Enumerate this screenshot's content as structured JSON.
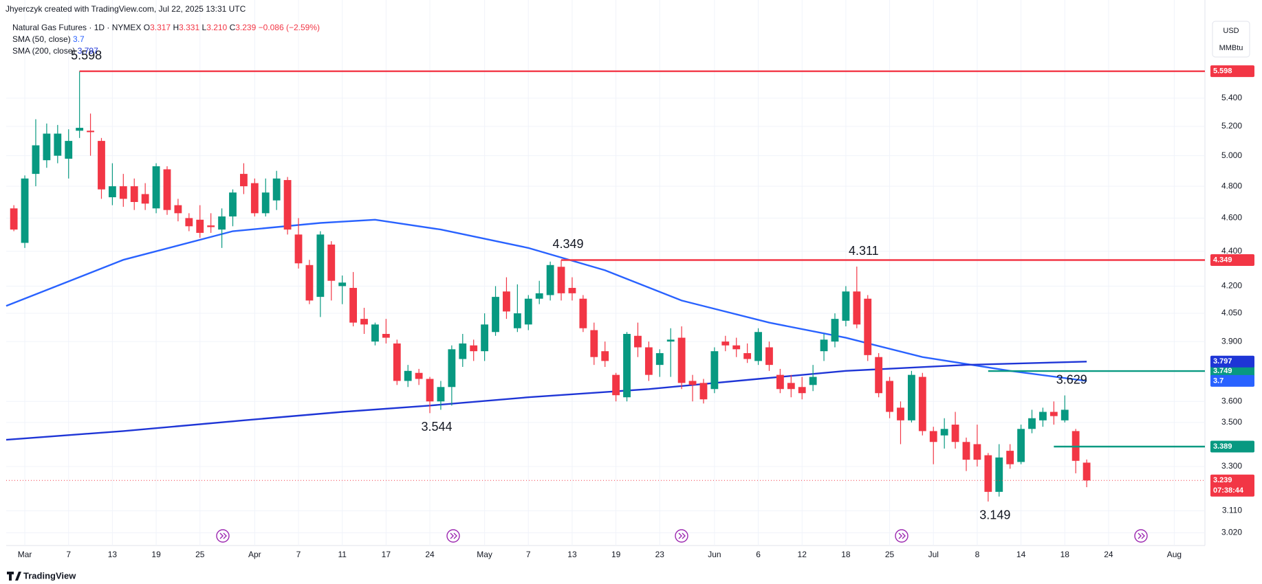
{
  "header": {
    "credit": "Jhyerczyk created with TradingView.com, Jul 22, 2025 13:31 UTC",
    "symbol": "Natural Gas Futures · 1D · NYMEX",
    "ohlc": [
      {
        "label": "O",
        "text": "3.317"
      },
      {
        "label": "H",
        "text": "3.331"
      },
      {
        "label": "L",
        "text": "3.210"
      },
      {
        "label": "C",
        "text": "3.239"
      }
    ],
    "change": "−0.086 (−2.59%)",
    "currency": "USD",
    "unit": "MMBtu"
  },
  "footer": {
    "brand": "TradingView"
  },
  "chart_data": {
    "type": "candlestick",
    "log_scale": true,
    "grid": true,
    "up_color": "#089981",
    "down_color": "#f23645",
    "xlim": [
      -0.7,
      108.8
    ],
    "ylim": [
      2.98,
      5.99
    ],
    "yticks": [
      {
        "value": 5.4,
        "label": "5.400"
      },
      {
        "value": 5.2,
        "label": "5.200"
      },
      {
        "value": 5.0,
        "label": "5.000"
      },
      {
        "value": 4.8,
        "label": "4.800"
      },
      {
        "value": 4.6,
        "label": "4.600"
      },
      {
        "value": 4.4,
        "label": "4.400"
      },
      {
        "value": 4.2,
        "label": "4.200"
      },
      {
        "value": 4.05,
        "label": "4.050"
      },
      {
        "value": 3.9,
        "label": "3.900"
      },
      {
        "value": 3.6,
        "label": "3.600"
      },
      {
        "value": 3.5,
        "label": "3.500"
      },
      {
        "value": 3.3,
        "label": "3.300"
      },
      {
        "value": 3.11,
        "label": "3.110"
      },
      {
        "value": 3.02,
        "label": "3.020"
      }
    ],
    "xticks": [
      {
        "value": 1,
        "label": "Mar"
      },
      {
        "value": 5,
        "label": "7"
      },
      {
        "value": 9,
        "label": "13"
      },
      {
        "value": 13,
        "label": "19"
      },
      {
        "value": 17,
        "label": "25"
      },
      {
        "value": 22,
        "label": "Apr"
      },
      {
        "value": 26,
        "label": "7"
      },
      {
        "value": 30,
        "label": "11"
      },
      {
        "value": 34,
        "label": "17"
      },
      {
        "value": 38,
        "label": "24"
      },
      {
        "value": 43,
        "label": "May"
      },
      {
        "value": 47,
        "label": "7"
      },
      {
        "value": 51,
        "label": "13"
      },
      {
        "value": 55,
        "label": "19"
      },
      {
        "value": 59,
        "label": "23"
      },
      {
        "value": 64,
        "label": "Jun"
      },
      {
        "value": 68,
        "label": "6"
      },
      {
        "value": 72,
        "label": "12"
      },
      {
        "value": 76,
        "label": "18"
      },
      {
        "value": 80,
        "label": "25"
      },
      {
        "value": 84,
        "label": "Jul"
      },
      {
        "value": 88,
        "label": "8"
      },
      {
        "value": 92,
        "label": "14"
      },
      {
        "value": 96,
        "label": "18"
      },
      {
        "value": 100,
        "label": "24"
      },
      {
        "value": 106,
        "label": "Aug"
      }
    ],
    "open": [
      4.66,
      4.45,
      4.88,
      4.97,
      5.0,
      4.98,
      5.17,
      5.17,
      5.1,
      4.73,
      4.8,
      4.8,
      4.75,
      4.66,
      4.91,
      4.68,
      4.6,
      4.59,
      4.555,
      4.53,
      4.61,
      4.88,
      4.82,
      4.63,
      4.71,
      4.84,
      4.5,
      4.32,
      4.14,
      4.44,
      4.2,
      4.19,
      4.02,
      3.9,
      3.94,
      3.89,
      3.7,
      3.74,
      3.71,
      3.6,
      3.67,
      3.81,
      3.88,
      3.85,
      3.95,
      4.17,
      3.97,
      3.99,
      4.13,
      4.15,
      4.31,
      4.19,
      4.13,
      3.96,
      3.85,
      3.73,
      3.62,
      3.93,
      3.87,
      3.78,
      3.9,
      3.92,
      3.7,
      3.69,
      3.66,
      3.9,
      3.88,
      3.84,
      3.8,
      3.87,
      3.73,
      3.69,
      3.67,
      3.68,
      3.85,
      3.9,
      4.01,
      4.17,
      4.13,
      3.82,
      3.7,
      3.57,
      3.51,
      3.72,
      3.46,
      3.44,
      3.49,
      3.41,
      3.4,
      3.35,
      3.19,
      3.37,
      3.32,
      3.47,
      3.51,
      3.55,
      3.51,
      3.46,
      3.317
    ],
    "high": [
      4.68,
      4.87,
      5.25,
      5.22,
      5.21,
      5.18,
      5.598,
      5.29,
      5.12,
      4.95,
      4.88,
      4.85,
      4.82,
      4.95,
      4.93,
      4.72,
      4.63,
      4.68,
      4.63,
      4.66,
      4.78,
      4.95,
      4.85,
      4.85,
      4.9,
      4.86,
      4.6,
      4.35,
      4.52,
      4.46,
      4.26,
      4.28,
      4.08,
      4.0,
      4.02,
      3.91,
      3.78,
      3.76,
      3.72,
      3.7,
      3.88,
      3.94,
      3.91,
      4.05,
      4.2,
      4.25,
      4.21,
      4.15,
      4.23,
      4.34,
      4.349,
      4.25,
      4.15,
      4.0,
      3.9,
      3.74,
      3.95,
      4.0,
      3.9,
      3.86,
      3.97,
      3.98,
      3.73,
      3.71,
      3.87,
      3.93,
      3.92,
      3.89,
      3.97,
      3.9,
      3.76,
      3.73,
      3.72,
      3.78,
      3.94,
      4.05,
      4.2,
      4.311,
      4.15,
      3.84,
      3.72,
      3.6,
      3.75,
      3.74,
      3.48,
      3.52,
      3.55,
      3.43,
      3.49,
      3.36,
      3.4,
      3.4,
      3.49,
      3.56,
      3.57,
      3.6,
      3.629,
      3.47,
      3.331
    ],
    "low": [
      4.52,
      4.42,
      4.8,
      4.92,
      4.95,
      4.85,
      5.12,
      5.0,
      4.72,
      4.68,
      4.67,
      4.65,
      4.65,
      4.63,
      4.62,
      4.58,
      4.52,
      4.48,
      4.51,
      4.42,
      4.55,
      4.75,
      4.61,
      4.61,
      4.65,
      4.5,
      4.3,
      4.1,
      4.03,
      4.12,
      4.1,
      3.98,
      3.94,
      3.88,
      3.89,
      3.68,
      3.67,
      3.68,
      3.544,
      3.56,
      3.58,
      3.77,
      3.8,
      3.8,
      3.93,
      4.02,
      3.95,
      3.96,
      4.1,
      4.12,
      4.12,
      4.12,
      3.95,
      3.78,
      3.77,
      3.6,
      3.6,
      3.82,
      3.7,
      3.72,
      3.72,
      3.66,
      3.6,
      3.59,
      3.64,
      3.85,
      3.82,
      3.79,
      3.78,
      3.75,
      3.64,
      3.62,
      3.61,
      3.65,
      3.8,
      3.87,
      3.98,
      3.97,
      3.8,
      3.62,
      3.52,
      3.4,
      3.5,
      3.44,
      3.31,
      3.38,
      3.38,
      3.28,
      3.3,
      3.149,
      3.17,
      3.29,
      3.31,
      3.45,
      3.48,
      3.49,
      3.5,
      3.27,
      3.21
    ],
    "close": [
      4.53,
      4.85,
      5.07,
      5.15,
      5.15,
      5.1,
      5.19,
      5.16,
      4.78,
      4.8,
      4.72,
      4.7,
      4.69,
      4.93,
      4.65,
      4.63,
      4.55,
      4.51,
      4.545,
      4.61,
      4.76,
      4.8,
      4.63,
      4.76,
      4.85,
      4.53,
      4.33,
      4.12,
      4.5,
      4.23,
      4.22,
      4.0,
      3.99,
      3.99,
      3.92,
      3.7,
      3.75,
      3.71,
      3.6,
      3.67,
      3.86,
      3.89,
      3.85,
      3.99,
      4.14,
      4.06,
      4.05,
      4.13,
      4.16,
      4.32,
      4.16,
      4.16,
      3.97,
      3.82,
      3.8,
      3.63,
      3.94,
      3.87,
      3.73,
      3.84,
      3.91,
      3.69,
      3.68,
      3.61,
      3.85,
      3.88,
      3.86,
      3.81,
      3.95,
      3.78,
      3.66,
      3.66,
      3.64,
      3.72,
      3.91,
      4.02,
      4.17,
      3.99,
      3.83,
      3.64,
      3.55,
      3.51,
      3.73,
      3.46,
      3.41,
      3.47,
      3.41,
      3.33,
      3.33,
      3.19,
      3.34,
      3.31,
      3.47,
      3.52,
      3.55,
      3.53,
      3.56,
      3.325,
      3.239
    ],
    "series": [
      {
        "name": "SMA (50, close)",
        "color": "#2962ff",
        "x": [
          -0.7,
          10,
          20,
          28,
          33,
          39,
          47,
          54,
          61,
          69,
          76,
          83,
          91,
          98
        ],
        "values": [
          4.09,
          4.35,
          4.52,
          4.57,
          4.59,
          4.53,
          4.42,
          4.29,
          4.12,
          4.0,
          3.92,
          3.82,
          3.75,
          3.7
        ]
      },
      {
        "name": "SMA (200, close)",
        "color": "#1e35d6",
        "x": [
          -0.7,
          10,
          21,
          30,
          38,
          47,
          58,
          68,
          76,
          87,
          98
        ],
        "values": [
          3.42,
          3.46,
          3.51,
          3.55,
          3.58,
          3.62,
          3.66,
          3.71,
          3.75,
          3.78,
          3.797
        ]
      }
    ],
    "levels": [
      {
        "value": 5.598,
        "from": 6,
        "color": "#f23645"
      },
      {
        "value": 4.349,
        "from": 50,
        "color": "#f23645"
      },
      {
        "value": 3.749,
        "from": 89,
        "color": "#089981"
      },
      {
        "value": 3.389,
        "from": 95,
        "color": "#089981"
      }
    ],
    "annotations": [
      {
        "x": 6,
        "value": 5.598
      },
      {
        "x": 50,
        "value": 4.349
      },
      {
        "x": 77,
        "value": 4.311
      },
      {
        "x": 38,
        "value": 3.544
      },
      {
        "x": 96,
        "value": 3.629
      },
      {
        "x": 89,
        "value": 3.149
      }
    ],
    "countdown": "07:38:44"
  }
}
